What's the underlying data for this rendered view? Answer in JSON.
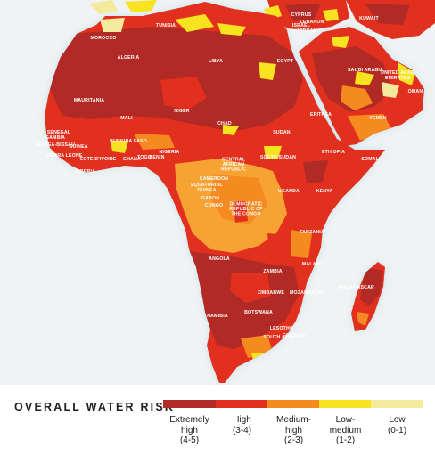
{
  "map": {
    "colors": {
      "ocean": "#f0f2f3",
      "coast_glow": "#bfe0ec",
      "extremely_high": "#b12a25",
      "high": "#e2301f",
      "medium_high": "#f58a20",
      "low_medium": "#f7e31f",
      "low": "#f4ea9b",
      "basin_orange": "#f6a333"
    },
    "country_labels": [
      "CYPRUS",
      "LEBANON",
      "ISRAEL",
      "JORDAN",
      "KUWAIT",
      "MOROCCO",
      "TUNISIA",
      "ALGERIA",
      "LIBYA",
      "EGYPT",
      "SAUDI ARABIA",
      "UNITED ARAB EMIRATES",
      "OMAN",
      "YEMEN",
      "ERITREA",
      "SUDAN",
      "CHAD",
      "NIGER",
      "MALI",
      "MAURITANIA",
      "SENEGAL",
      "GAMBIA",
      "GUINEA-BISSAU",
      "GUINEA",
      "SIERRA LEONE",
      "LIBERIA",
      "COTE D'IVOIRE",
      "BURKINA FASO",
      "GHANA",
      "TOGO",
      "BENIN",
      "NIGERIA",
      "CENTRAL AFRICAN REPUBLIC",
      "SOUTH SUDAN",
      "ETHIOPIA",
      "SOMALIA",
      "CAMEROON",
      "EQUATORIAL GUINEA",
      "GABON",
      "CONGO",
      "DEMOCRATIC REPUBLIC OF THE CONGO",
      "UGANDA",
      "KENYA",
      "TANZANIA",
      "ANGOLA",
      "ZAMBIA",
      "MALAWI",
      "MOZAMBIQUE",
      "ZIMBABWE",
      "MADAGASCAR",
      "NAMIBIA",
      "BOTSWANA",
      "SOUTH AFRICA",
      "LESOTHO",
      "ESWATINI"
    ]
  },
  "legend": {
    "title": "OVERALL WATER RISK",
    "categories": [
      {
        "lines": [
          "Extremely",
          "high",
          "(4-5)"
        ],
        "color": "#b12a25"
      },
      {
        "lines": [
          "High",
          "(3-4)"
        ],
        "color": "#e2301f"
      },
      {
        "lines": [
          "Medium-",
          "high",
          "(2-3)"
        ],
        "color": "#f58a20"
      },
      {
        "lines": [
          "Low-",
          "medium",
          "(1-2)"
        ],
        "color": "#f7e31f"
      },
      {
        "lines": [
          "Low",
          "(0-1)"
        ],
        "color": "#f4ea9b"
      }
    ]
  }
}
